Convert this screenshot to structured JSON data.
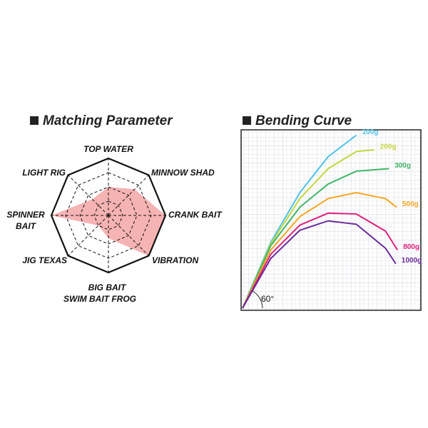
{
  "chart_data": [
    {
      "type": "radar",
      "title": "Matching Parameter",
      "categories": [
        [
          "TOP WATER"
        ],
        [
          "MINNOW SHAD"
        ],
        [
          "CRANK BAIT"
        ],
        [
          "VIBRATION"
        ],
        [
          "BIG BAIT",
          "SWIM BAIT FROG"
        ],
        [
          "JIG TEXAS"
        ],
        [
          "SPINNER",
          "BAIT"
        ],
        [
          "LIGHT RIG"
        ]
      ],
      "values": [
        2,
        2.6,
        4,
        4,
        1.6,
        1,
        4,
        1.6
      ],
      "color": "#f4a6a6",
      "rlim": [
        0,
        4
      ],
      "rticks": [
        1,
        2,
        3,
        4
      ]
    },
    {
      "type": "line",
      "title": "Bending Curve",
      "annotation": "60°",
      "xlim": [
        0,
        21
      ],
      "ylim": [
        0,
        21
      ],
      "grid": true,
      "series": [
        {
          "name": "100g",
          "color": "#4fc3e8",
          "x": [
            0,
            3.3,
            6.7,
            10,
            13.3
          ],
          "values": [
            0,
            7.7,
            13.5,
            17.7,
            20.2
          ]
        },
        {
          "name": "200g",
          "color": "#c5d640",
          "x": [
            0,
            3.3,
            6.7,
            10,
            13.3,
            15.4
          ],
          "values": [
            0,
            7.5,
            12.8,
            16.3,
            18.3,
            18.5
          ]
        },
        {
          "name": "300g",
          "color": "#3fb566",
          "x": [
            0,
            3.3,
            6.7,
            10,
            13.3,
            17.1
          ],
          "values": [
            0,
            7.3,
            11.8,
            14.5,
            16,
            16.3
          ]
        },
        {
          "name": "500g",
          "color": "#f5a623",
          "x": [
            0,
            3.3,
            6.7,
            10,
            13.3,
            16.7,
            18
          ],
          "values": [
            0,
            6.8,
            10.7,
            12.8,
            13.5,
            12.8,
            11.8
          ]
        },
        {
          "name": "800g",
          "color": "#e0207a",
          "x": [
            0,
            3.3,
            6.7,
            10,
            13.3,
            16.7,
            18.1
          ],
          "values": [
            0,
            6.3,
            9.7,
            11.1,
            11,
            9,
            6.8
          ]
        },
        {
          "name": "1000g",
          "color": "#6a2a9a",
          "x": [
            0,
            3.3,
            6.7,
            10,
            13.3,
            16.7,
            17.9
          ],
          "values": [
            0,
            5.8,
            9.1,
            10.2,
            9.8,
            7,
            5.2
          ]
        }
      ]
    }
  ]
}
